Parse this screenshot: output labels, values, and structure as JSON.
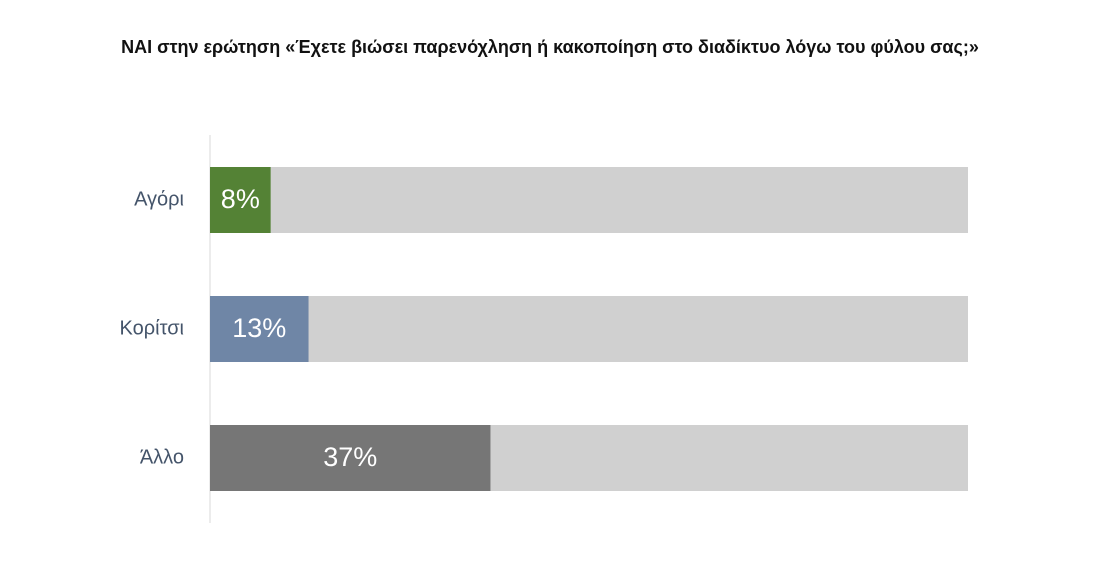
{
  "chart_data": {
    "type": "bar",
    "orientation": "horizontal",
    "title": "ΝΑΙ στην ερώτηση «Έχετε βιώσει παρενόχληση ή κακοποίηση στο διαδίκτυο λόγω του φύλου σας;»",
    "categories": [
      "Αγόρι",
      "Κορίτσι",
      "Άλλο"
    ],
    "values": [
      8,
      13,
      37
    ],
    "value_labels": [
      "8%",
      "13%",
      "37%"
    ],
    "colors": [
      "#548235",
      "#6f86a6",
      "#767676"
    ],
    "track_color": "#d0d0d0",
    "xlim": [
      0,
      100
    ]
  }
}
